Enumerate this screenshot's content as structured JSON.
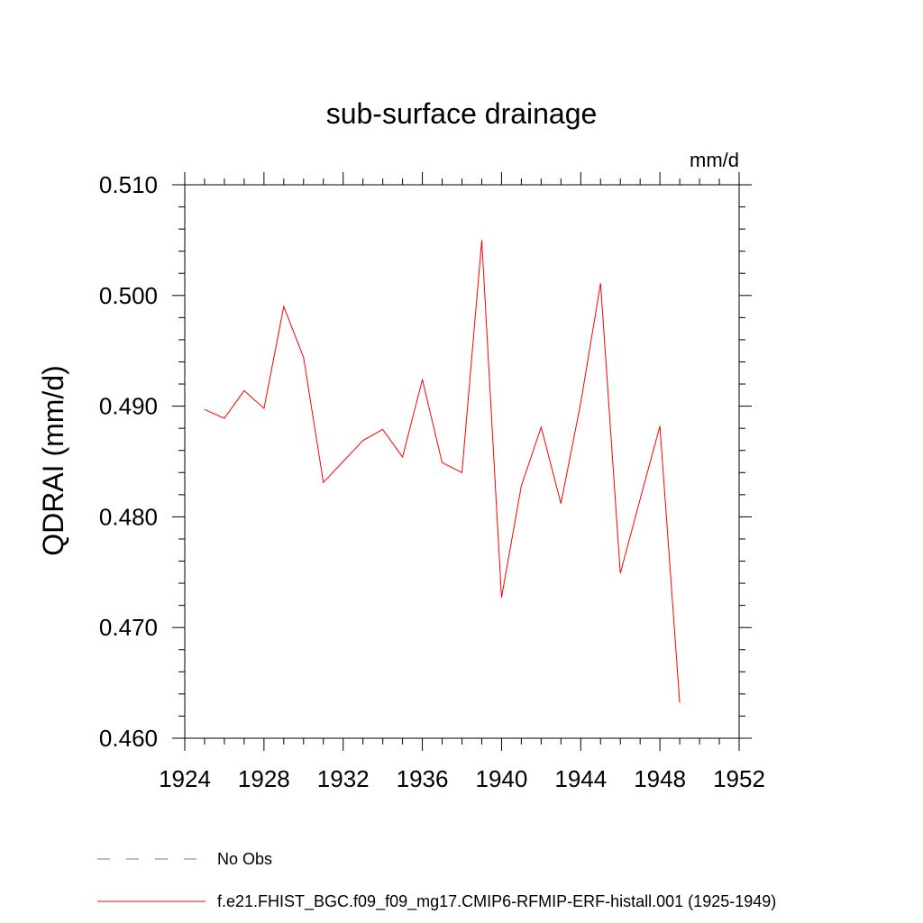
{
  "chart_data": {
    "type": "line",
    "title": "sub-surface drainage",
    "units": "mm/d",
    "ylabel": "QDRAI  (mm/d)",
    "xlabel": "",
    "xlim": [
      1924,
      1952
    ],
    "ylim": [
      0.46,
      0.51
    ],
    "xticks": [
      "1924",
      "1928",
      "1932",
      "1936",
      "1940",
      "1944",
      "1948",
      "1952"
    ],
    "yticks": [
      "0.460",
      "0.470",
      "0.480",
      "0.490",
      "0.500",
      "0.510"
    ],
    "grid": false,
    "legend_position": "bottom",
    "series": [
      {
        "name": "No Obs",
        "style": "dashed",
        "color": "#7b6fb5",
        "x": [],
        "y": []
      },
      {
        "name": "f.e21.FHIST_BGC.f09_f09_mg17.CMIP6-RFMIP-ERF-histall.001 (1925-1949)",
        "style": "solid",
        "color": "#ff0000",
        "x": [
          1925,
          1926,
          1927,
          1928,
          1929,
          1930,
          1931,
          1932,
          1933,
          1934,
          1935,
          1936,
          1937,
          1938,
          1939,
          1940,
          1941,
          1942,
          1943,
          1944,
          1945,
          1946,
          1947,
          1948,
          1949
        ],
        "y": [
          0.4897,
          0.4889,
          0.4914,
          0.4898,
          0.499,
          0.4944,
          0.4831,
          0.485,
          0.4869,
          0.4879,
          0.4854,
          0.4924,
          0.4849,
          0.484,
          0.505,
          0.4727,
          0.4828,
          0.4881,
          0.4812,
          0.4903,
          0.5011,
          0.4749,
          0.4816,
          0.4882,
          0.4632
        ]
      }
    ]
  }
}
